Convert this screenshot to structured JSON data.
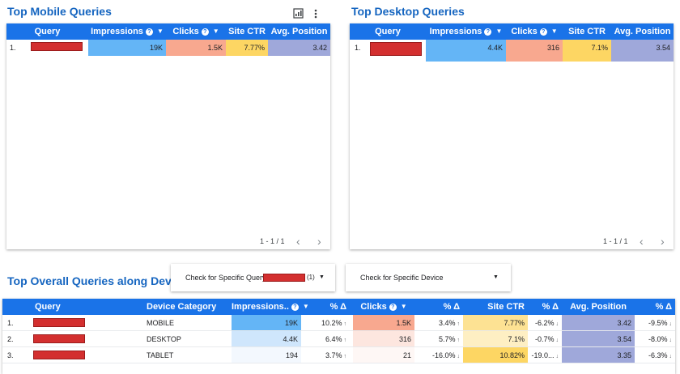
{
  "mobile": {
    "title": "Top Mobile Queries",
    "toolbar": {
      "explore_icon": "chart-explore-icon",
      "more_icon": "more-vert-icon"
    },
    "headers": {
      "query": "Query",
      "impressions": "Impressions",
      "clicks": "Clicks",
      "ctr": "Site CTR",
      "position": "Avg. Position"
    },
    "rows": [
      {
        "num": "1.",
        "impressions": "19K",
        "clicks": "1.5K",
        "ctr": "7.77%",
        "position": "3.42"
      }
    ],
    "pager": "1 - 1 / 1"
  },
  "desktop": {
    "title": "Top Desktop Queries",
    "headers": {
      "query": "Query",
      "impressions": "Impressions",
      "clicks": "Clicks",
      "ctr": "Site CTR",
      "position": "Avg. Position"
    },
    "rows": [
      {
        "num": "1.",
        "impressions": "4.4K",
        "clicks": "316",
        "ctr": "7.1%",
        "position": "3.54"
      }
    ],
    "pager": "1 - 1 / 1"
  },
  "overall": {
    "title": "Top Overall Queries along Device",
    "filters": {
      "query_label": "Check for Specific Query",
      "query_count": "(1)",
      "device_label": "Check for Specific Device"
    },
    "headers": {
      "query": "Query",
      "device": "Device Category",
      "impressions": "Impressions..",
      "delta": "% Δ",
      "clicks": "Clicks",
      "ctr": "Site CTR",
      "position": "Avg. Position"
    },
    "rows": [
      {
        "num": "1.",
        "device": "MOBILE",
        "impressions": "19K",
        "imp_delta": "10.2%",
        "imp_dir": "↑",
        "clicks": "1.5K",
        "clk_delta": "3.4%",
        "clk_dir": "↑",
        "ctr": "7.77%",
        "ctr_delta": "-6.2%",
        "ctr_dir": "↓",
        "position": "3.42",
        "pos_delta": "-9.5%",
        "pos_dir": "↓"
      },
      {
        "num": "2.",
        "device": "DESKTOP",
        "impressions": "4.4K",
        "imp_delta": "6.4%",
        "imp_dir": "↑",
        "clicks": "316",
        "clk_delta": "5.7%",
        "clk_dir": "↑",
        "ctr": "7.1%",
        "ctr_delta": "-0.7%",
        "ctr_dir": "↓",
        "position": "3.54",
        "pos_delta": "-8.0%",
        "pos_dir": "↓"
      },
      {
        "num": "3.",
        "device": "TABLET",
        "impressions": "194",
        "imp_delta": "3.7%",
        "imp_dir": "↑",
        "clicks": "21",
        "clk_delta": "-16.0%",
        "clk_dir": "↓",
        "ctr": "10.82%",
        "ctr_delta": "-19.0...",
        "ctr_dir": "↓",
        "position": "3.35",
        "pos_delta": "-6.3%",
        "pos_dir": "↓"
      }
    ]
  },
  "colors": {
    "header": "#1a73e8",
    "title": "#1565c0",
    "impressions": "#64b5f6",
    "clicks": "#f8a88f",
    "ctr": "#fdd663",
    "position": "#9fa8da"
  }
}
